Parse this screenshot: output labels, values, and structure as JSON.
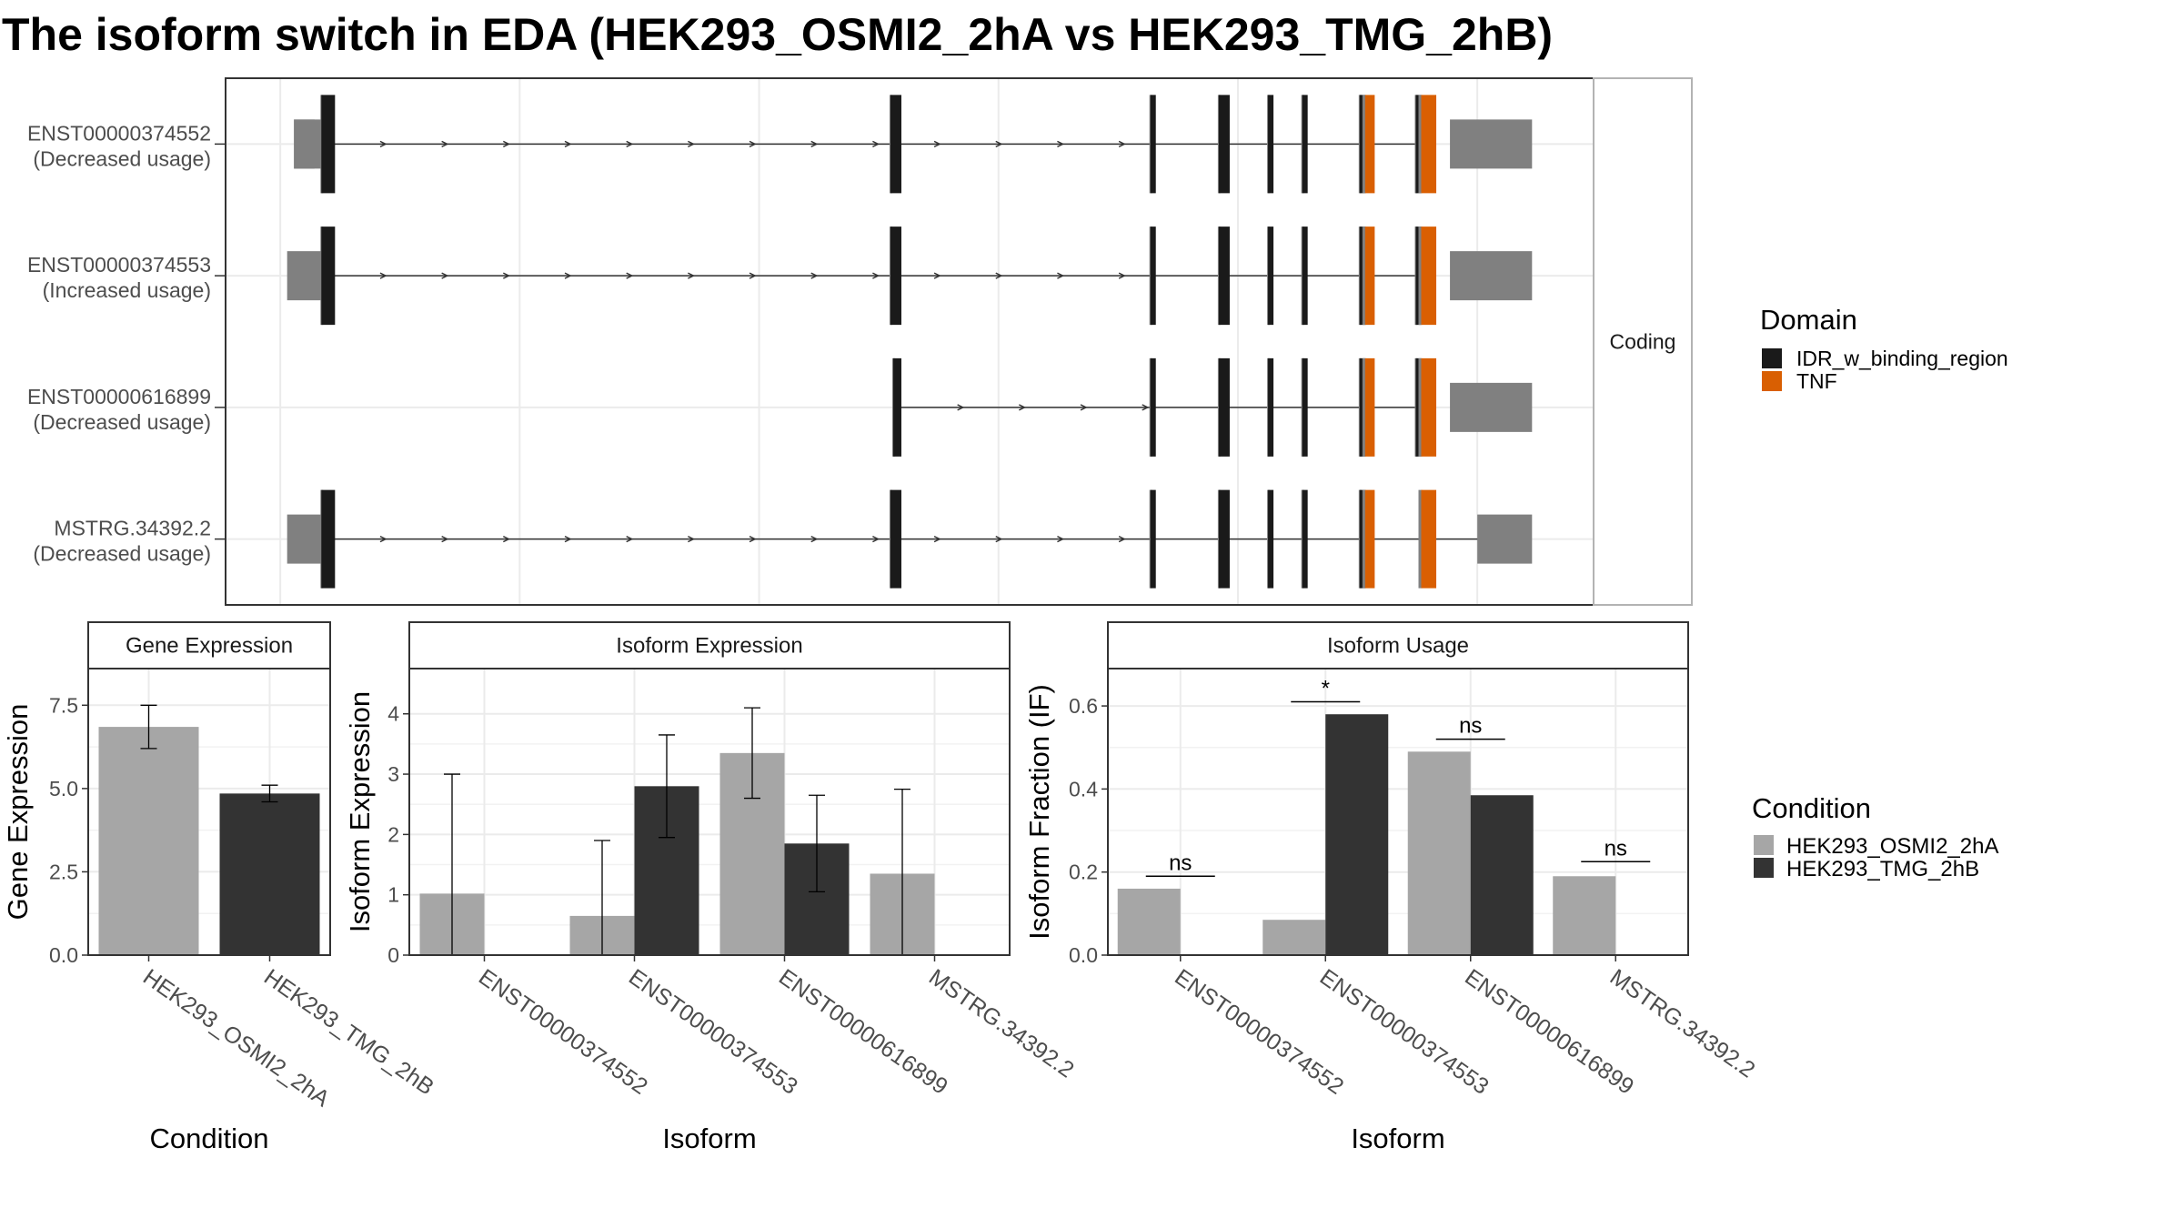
{
  "title": "The isoform switch in EDA (HEK293_OSMI2_2hA vs HEK293_TMG_2hB)",
  "colors": {
    "condition_a": "#a6a6a6",
    "condition_b": "#333333",
    "idr": "#1a1a1a",
    "tnf": "#d95f02",
    "utr": "#808080",
    "panel_bg": "#ffffff",
    "grid": "#ebebeb",
    "strip_bg": "#ffffff"
  },
  "chart_data": [
    {
      "type": "table",
      "name": "transcript_structure",
      "facet_label": "Coding",
      "x_range": [
        0,
        100
      ],
      "grid_x": [
        4,
        21.5,
        39,
        56.5,
        74,
        91.5
      ],
      "transcripts": [
        {
          "id": "ENST00000374552",
          "usage": "(Decreased usage)",
          "intron": [
            7,
            87.5
          ],
          "utr": [
            [
              5,
              7
            ],
            [
              89.5,
              95.5
            ]
          ],
          "idr": [
            [
              7,
              8
            ],
            [
              48.6,
              49.4
            ],
            [
              67.6,
              68
            ],
            [
              72.6,
              73.4
            ],
            [
              76.2,
              76.6
            ],
            [
              78.7,
              79.1
            ],
            [
              82.9,
              83.3
            ],
            [
              87,
              87.4
            ]
          ],
          "tnf": [
            [
              83.3,
              84
            ],
            [
              87.4,
              88.5
            ]
          ],
          "thin_utr": [
            [
              5,
              6.5
            ]
          ]
        },
        {
          "id": "ENST00000374553",
          "usage": "(Increased usage)",
          "intron": [
            7,
            87.5
          ],
          "utr": [
            [
              4.5,
              7
            ],
            [
              89.5,
              95.5
            ]
          ],
          "idr": [
            [
              7,
              8
            ],
            [
              48.6,
              49.4
            ],
            [
              67.6,
              68
            ],
            [
              72.6,
              73.4
            ],
            [
              76.2,
              76.6
            ],
            [
              78.7,
              79.1
            ],
            [
              82.9,
              83.3
            ],
            [
              87,
              87.4
            ]
          ],
          "tnf": [
            [
              83.3,
              84
            ],
            [
              87.4,
              88.5
            ]
          ]
        },
        {
          "id": "ENST00000616899",
          "usage": "(Decreased usage)",
          "intron": [
            49.2,
            87.5
          ],
          "utr": [
            [
              89.5,
              95.5
            ]
          ],
          "idr": [
            [
              48.8,
              49.4
            ],
            [
              67.6,
              68
            ],
            [
              72.6,
              73.4
            ],
            [
              76.2,
              76.6
            ],
            [
              78.7,
              79.1
            ],
            [
              82.9,
              83.3
            ],
            [
              87,
              87.4
            ]
          ],
          "tnf": [
            [
              83.3,
              84
            ],
            [
              87.4,
              88.5
            ]
          ]
        },
        {
          "id": "MSTRG.34392.2",
          "usage": "(Decreased usage)",
          "intron": [
            7,
            92
          ],
          "utr": [
            [
              4.5,
              7
            ],
            [
              91.5,
              95.5
            ]
          ],
          "idr": [
            [
              7,
              8
            ],
            [
              48.6,
              49.4
            ],
            [
              67.6,
              68
            ],
            [
              72.6,
              73.4
            ],
            [
              76.2,
              76.6
            ],
            [
              78.7,
              79.1
            ],
            [
              82.9,
              83.3
            ]
          ],
          "tnf": [
            [
              83.3,
              84
            ],
            [
              87.4,
              88.5
            ]
          ]
        }
      ],
      "legend": {
        "title": "Domain",
        "entries": [
          "IDR_w_binding_region",
          "TNF"
        ]
      }
    },
    {
      "type": "bar",
      "strip": "Gene Expression",
      "xlabel": "Condition",
      "ylabel": "Gene Expression",
      "ylim": [
        0,
        8.6
      ],
      "yticks": [
        0.0,
        2.5,
        5.0,
        7.5
      ],
      "ytick_labels": [
        "0.0",
        "2.5",
        "5.0",
        "7.5"
      ],
      "categories": [
        "HEK293_OSMI2_2hA",
        "HEK293_TMG_2hB"
      ],
      "values": [
        6.85,
        4.85
      ],
      "error_low": [
        6.2,
        4.6
      ],
      "error_high": [
        7.5,
        5.1
      ]
    },
    {
      "type": "bar",
      "strip": "Isoform Expression",
      "xlabel": "Isoform",
      "ylabel": "Isoform Expression",
      "ylim": [
        0,
        4.75
      ],
      "yticks": [
        0,
        1,
        2,
        3,
        4
      ],
      "ytick_labels": [
        "0",
        "1",
        "2",
        "3",
        "4"
      ],
      "categories": [
        "ENST00000374552",
        "ENST00000374553",
        "ENST00000616899",
        "MSTRG.34392.2"
      ],
      "series": [
        {
          "name": "HEK293_OSMI2_2hA",
          "values": [
            1.02,
            0.65,
            3.35,
            1.35
          ],
          "error_low": [
            0,
            0,
            2.6,
            0
          ],
          "error_high": [
            3.0,
            1.9,
            4.1,
            2.75
          ]
        },
        {
          "name": "HEK293_TMG_2hB",
          "values": [
            0,
            2.8,
            1.85,
            0
          ],
          "error_low": [
            0,
            1.95,
            1.05,
            0
          ],
          "error_high": [
            0,
            3.65,
            2.65,
            0
          ]
        }
      ]
    },
    {
      "type": "bar",
      "strip": "Isoform Usage",
      "xlabel": "Isoform",
      "ylabel": "Isoform Fraction (IF)",
      "ylim": [
        0,
        0.69
      ],
      "yticks": [
        0.0,
        0.2,
        0.4,
        0.6
      ],
      "ytick_labels": [
        "0.0",
        "0.2",
        "0.4",
        "0.6"
      ],
      "categories": [
        "ENST00000374552",
        "ENST00000374553",
        "ENST00000616899",
        "MSTRG.34392.2"
      ],
      "series": [
        {
          "name": "HEK293_OSMI2_2hA",
          "values": [
            0.16,
            0.085,
            0.49,
            0.19
          ]
        },
        {
          "name": "HEK293_TMG_2hB",
          "values": [
            0,
            0.58,
            0.385,
            0
          ]
        }
      ],
      "significance": [
        "ns",
        "*",
        "ns",
        "ns"
      ],
      "sig_y": [
        0.19,
        0.61,
        0.52,
        0.225
      ]
    }
  ],
  "condition_legend": {
    "title": "Condition",
    "entries": [
      "HEK293_OSMI2_2hA",
      "HEK293_TMG_2hB"
    ]
  }
}
